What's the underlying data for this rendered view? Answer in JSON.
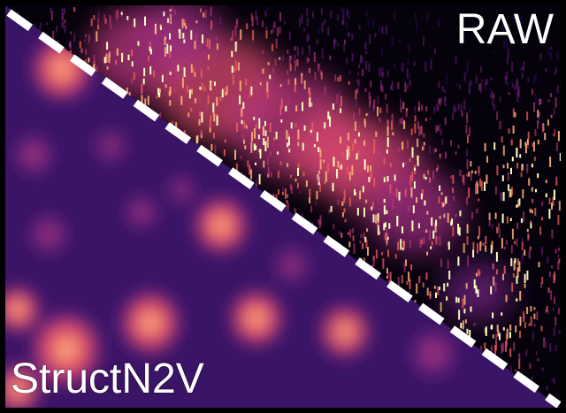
{
  "labels": {
    "raw": "RAW",
    "denoised": "StructN2V"
  },
  "colors": {
    "background": "#000000",
    "border": "#000000",
    "divider": "#ffffff",
    "colormap": [
      "#000004",
      "#2c115f",
      "#721f81",
      "#b73779",
      "#f1605d",
      "#feb078",
      "#fcfdbf"
    ]
  },
  "divider_style": "dashed"
}
